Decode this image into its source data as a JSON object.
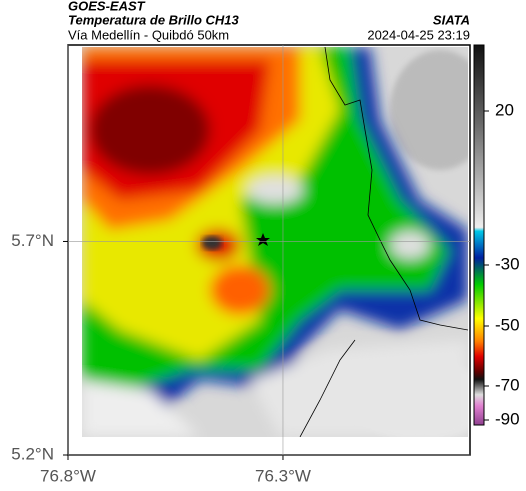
{
  "header": {
    "title": "GOES-EAST",
    "subtitle": "Temperatura de Brillo CH13",
    "location": "Vía Medellín - Quibdó 50km",
    "source": "SIATA",
    "datetime": "2024-04-25 23:19"
  },
  "map": {
    "xlim": [
      -76.8,
      -75.865
    ],
    "ylim": [
      5.2,
      6.16
    ],
    "xticks": [
      {
        "value": -76.8,
        "label": "76.8°W"
      },
      {
        "value": -76.3,
        "label": "76.3°W"
      }
    ],
    "yticks": [
      {
        "value": 5.7,
        "label": "5.7°N"
      },
      {
        "value": 5.2,
        "label": "5.2°N"
      }
    ]
  },
  "colorbar": {
    "ticks": [
      20,
      -30,
      -50,
      -70,
      -90
    ]
  }
}
